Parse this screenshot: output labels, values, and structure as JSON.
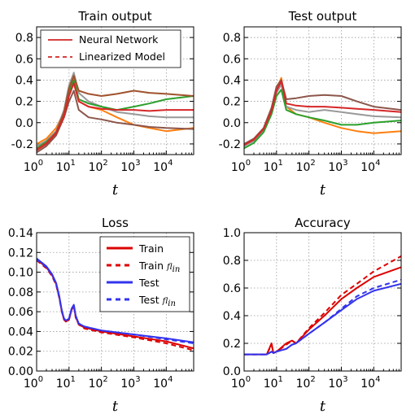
{
  "chart_data": [
    {
      "type": "line",
      "title": "Train output",
      "xlabel": "t",
      "xscale": "log",
      "xlim": [
        1,
        70000
      ],
      "ylim": [
        -0.3,
        0.9
      ],
      "yticks": [
        -0.2,
        0.0,
        0.2,
        0.4,
        0.6,
        0.8
      ],
      "grid": true,
      "legend_position": "top-left",
      "legend": [
        {
          "name": "Neural Network",
          "style": "solid",
          "color": "#cc0000"
        },
        {
          "name": "Linearized Model",
          "style": "dashed",
          "color": "#cc0000"
        }
      ],
      "series": [
        {
          "color": "#ff7f0e",
          "x": [
            1,
            2,
            4,
            7,
            10,
            14,
            20,
            40,
            100,
            300,
            1000,
            3000,
            10000,
            70000
          ],
          "y": [
            -0.2,
            -0.15,
            -0.05,
            0.1,
            0.3,
            0.45,
            0.2,
            0.15,
            0.12,
            0.05,
            -0.02,
            -0.05,
            -0.08,
            -0.05
          ]
        },
        {
          "color": "#8c564b",
          "x": [
            1,
            2,
            4,
            7,
            10,
            14,
            20,
            40,
            100,
            300,
            1000,
            3000,
            10000,
            70000
          ],
          "y": [
            -0.28,
            -0.22,
            -0.12,
            0.05,
            0.2,
            0.3,
            0.12,
            0.05,
            0.03,
            0.0,
            -0.02,
            -0.04,
            -0.05,
            -0.06
          ]
        },
        {
          "color": "#999999",
          "x": [
            1,
            2,
            4,
            7,
            10,
            14,
            20,
            40,
            100,
            300,
            1000,
            3000,
            10000,
            70000
          ],
          "y": [
            -0.22,
            -0.17,
            -0.08,
            0.12,
            0.35,
            0.47,
            0.28,
            0.2,
            0.15,
            0.1,
            0.08,
            0.06,
            0.05,
            0.05
          ]
        },
        {
          "color": "#2ca02c",
          "x": [
            1,
            2,
            4,
            7,
            10,
            14,
            20,
            40,
            100,
            300,
            1000,
            3000,
            10000,
            70000
          ],
          "y": [
            -0.24,
            -0.18,
            -0.1,
            0.08,
            0.28,
            0.4,
            0.22,
            0.18,
            0.15,
            0.12,
            0.15,
            0.18,
            0.22,
            0.25
          ]
        },
        {
          "color": "#a0522d",
          "x": [
            1,
            2,
            4,
            7,
            10,
            14,
            20,
            40,
            100,
            300,
            1000,
            3000,
            10000,
            70000
          ],
          "y": [
            -0.25,
            -0.19,
            -0.09,
            0.1,
            0.32,
            0.44,
            0.3,
            0.27,
            0.25,
            0.27,
            0.3,
            0.28,
            0.27,
            0.25
          ]
        },
        {
          "color": "#d62728",
          "x": [
            1,
            2,
            4,
            7,
            10,
            14,
            20,
            40,
            100,
            300,
            1000,
            3000,
            10000,
            70000
          ],
          "y": [
            -0.26,
            -0.2,
            -0.1,
            0.06,
            0.25,
            0.37,
            0.2,
            0.15,
            0.13,
            0.12,
            0.12,
            0.11,
            0.12,
            0.12
          ]
        }
      ]
    },
    {
      "type": "line",
      "title": "Test output",
      "xlabel": "t",
      "xscale": "log",
      "xlim": [
        1,
        70000
      ],
      "ylim": [
        -0.3,
        0.9
      ],
      "yticks": [
        -0.2,
        0.0,
        0.2,
        0.4,
        0.6,
        0.8
      ],
      "grid": true,
      "series": [
        {
          "color": "#ff7f0e",
          "x": [
            1,
            2,
            4,
            7,
            10,
            14,
            20,
            40,
            100,
            300,
            1000,
            3000,
            10000,
            70000
          ],
          "y": [
            -0.22,
            -0.16,
            -0.06,
            0.12,
            0.32,
            0.42,
            0.15,
            0.08,
            0.05,
            0.0,
            -0.05,
            -0.08,
            -0.1,
            -0.08
          ]
        },
        {
          "color": "#8c564b",
          "x": [
            1,
            2,
            4,
            7,
            10,
            14,
            20,
            40,
            100,
            300,
            1000,
            3000,
            10000,
            70000
          ],
          "y": [
            -0.2,
            -0.15,
            -0.05,
            0.14,
            0.34,
            0.4,
            0.22,
            0.23,
            0.25,
            0.26,
            0.25,
            0.2,
            0.15,
            0.12
          ]
        },
        {
          "color": "#999999",
          "x": [
            1,
            2,
            4,
            7,
            10,
            14,
            20,
            40,
            100,
            300,
            1000,
            3000,
            10000,
            70000
          ],
          "y": [
            -0.22,
            -0.17,
            -0.07,
            0.1,
            0.28,
            0.36,
            0.15,
            0.12,
            0.1,
            0.12,
            0.1,
            0.08,
            0.06,
            0.05
          ]
        },
        {
          "color": "#2ca02c",
          "x": [
            1,
            2,
            4,
            7,
            10,
            14,
            20,
            40,
            100,
            300,
            1000,
            3000,
            10000,
            70000
          ],
          "y": [
            -0.24,
            -0.19,
            -0.09,
            0.08,
            0.25,
            0.31,
            0.12,
            0.08,
            0.05,
            0.02,
            -0.02,
            -0.02,
            0.0,
            0.02
          ]
        },
        {
          "color": "#d62728",
          "x": [
            1,
            2,
            4,
            7,
            10,
            14,
            20,
            40,
            100,
            300,
            1000,
            3000,
            10000,
            70000
          ],
          "y": [
            -0.21,
            -0.16,
            -0.06,
            0.11,
            0.3,
            0.39,
            0.18,
            0.16,
            0.15,
            0.15,
            0.14,
            0.13,
            0.12,
            0.1
          ]
        }
      ]
    },
    {
      "type": "line",
      "title": "Loss",
      "xlabel": "t",
      "xscale": "log",
      "xlim": [
        1,
        70000
      ],
      "ylim": [
        0.0,
        0.14
      ],
      "yticks": [
        0.0,
        0.02,
        0.04,
        0.06,
        0.08,
        0.1,
        0.12,
        0.14
      ],
      "grid": true,
      "legend_position": "top-right",
      "series": [
        {
          "name": "Train",
          "style": "solid",
          "color": "#dd0000",
          "x": [
            1,
            2,
            3,
            4,
            5,
            6,
            7,
            8,
            10,
            12,
            14,
            16,
            20,
            30,
            100,
            1000,
            10000,
            70000
          ],
          "y": [
            0.113,
            0.105,
            0.097,
            0.088,
            0.075,
            0.06,
            0.052,
            0.05,
            0.052,
            0.062,
            0.066,
            0.055,
            0.047,
            0.044,
            0.04,
            0.035,
            0.03,
            0.023
          ]
        },
        {
          "name": "Train f_lin",
          "style": "dashed",
          "color": "#dd0000",
          "x": [
            1,
            2,
            3,
            4,
            5,
            6,
            7,
            8,
            10,
            12,
            14,
            16,
            20,
            30,
            100,
            1000,
            10000,
            70000
          ],
          "y": [
            0.112,
            0.104,
            0.096,
            0.087,
            0.074,
            0.06,
            0.052,
            0.05,
            0.052,
            0.062,
            0.066,
            0.054,
            0.047,
            0.043,
            0.039,
            0.034,
            0.028,
            0.021
          ]
        },
        {
          "name": "Test",
          "style": "solid",
          "color": "#3333ee",
          "x": [
            1,
            2,
            3,
            4,
            5,
            6,
            7,
            8,
            10,
            12,
            14,
            16,
            20,
            30,
            100,
            1000,
            10000,
            70000
          ],
          "y": [
            0.114,
            0.106,
            0.098,
            0.089,
            0.076,
            0.061,
            0.053,
            0.051,
            0.053,
            0.063,
            0.067,
            0.056,
            0.048,
            0.045,
            0.041,
            0.037,
            0.033,
            0.029
          ]
        },
        {
          "name": "Test f_lin",
          "style": "dashed",
          "color": "#3333ee",
          "x": [
            1,
            2,
            3,
            4,
            5,
            6,
            7,
            8,
            10,
            12,
            14,
            16,
            20,
            30,
            100,
            1000,
            10000,
            70000
          ],
          "y": [
            0.113,
            0.105,
            0.097,
            0.088,
            0.075,
            0.061,
            0.053,
            0.051,
            0.053,
            0.063,
            0.067,
            0.056,
            0.048,
            0.045,
            0.041,
            0.037,
            0.032,
            0.028
          ]
        }
      ]
    },
    {
      "type": "line",
      "title": "Accuracy",
      "xlabel": "t",
      "xscale": "log",
      "xlim": [
        1,
        70000
      ],
      "ylim": [
        0.0,
        1.0
      ],
      "yticks": [
        0.0,
        0.2,
        0.4,
        0.6,
        0.8,
        1.0
      ],
      "grid": true,
      "series": [
        {
          "name": "Train",
          "style": "solid",
          "color": "#dd0000",
          "x": [
            1,
            3,
            5,
            7,
            8,
            10,
            20,
            30,
            40,
            100,
            300,
            1000,
            3000,
            10000,
            70000
          ],
          "y": [
            0.12,
            0.12,
            0.12,
            0.2,
            0.13,
            0.14,
            0.2,
            0.22,
            0.2,
            0.3,
            0.4,
            0.52,
            0.6,
            0.68,
            0.75
          ]
        },
        {
          "name": "Train f_lin",
          "style": "dashed",
          "color": "#dd0000",
          "x": [
            1,
            3,
            5,
            7,
            8,
            10,
            20,
            30,
            40,
            100,
            300,
            1000,
            3000,
            10000,
            70000
          ],
          "y": [
            0.12,
            0.12,
            0.12,
            0.19,
            0.13,
            0.14,
            0.19,
            0.22,
            0.2,
            0.31,
            0.42,
            0.55,
            0.63,
            0.72,
            0.83
          ]
        },
        {
          "name": "Test",
          "style": "solid",
          "color": "#3333ee",
          "x": [
            1,
            3,
            5,
            7,
            8,
            10,
            20,
            30,
            40,
            100,
            300,
            1000,
            3000,
            10000,
            70000
          ],
          "y": [
            0.12,
            0.12,
            0.12,
            0.14,
            0.13,
            0.14,
            0.16,
            0.19,
            0.2,
            0.27,
            0.35,
            0.44,
            0.52,
            0.58,
            0.63
          ]
        },
        {
          "name": "Test f_lin",
          "style": "dashed",
          "color": "#3333ee",
          "x": [
            1,
            3,
            5,
            7,
            8,
            10,
            20,
            30,
            40,
            100,
            300,
            1000,
            3000,
            10000,
            70000
          ],
          "y": [
            0.12,
            0.12,
            0.12,
            0.14,
            0.13,
            0.14,
            0.16,
            0.19,
            0.2,
            0.27,
            0.35,
            0.45,
            0.54,
            0.6,
            0.66
          ]
        }
      ]
    }
  ]
}
